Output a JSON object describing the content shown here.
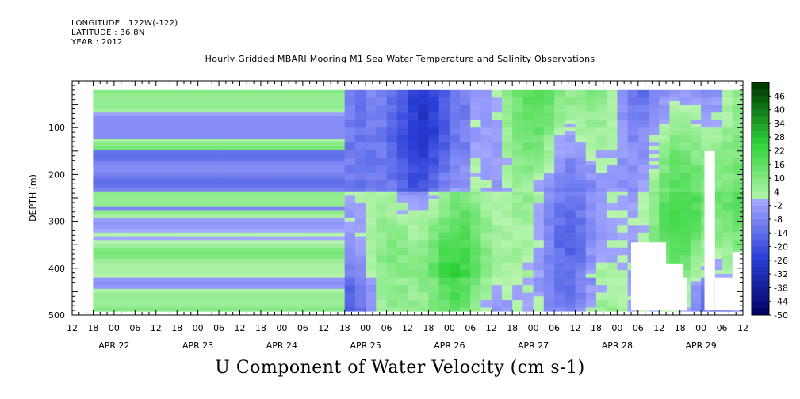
{
  "header": {
    "longitude": "LONGITUDE : 122W(-122)",
    "latitude": "LATITUDE : 36.8N",
    "year": "YEAR : 2012"
  },
  "chart_data": {
    "type": "heatmap",
    "title": "Hourly Gridded MBARI Mooring M1 Sea Water Temperature and Salinity Observations",
    "bottom_title": "U Component of Water Velocity (cm s-1)",
    "ylabel": "DEPTH (m)",
    "ylim": [
      500,
      0
    ],
    "y_ticks": [
      100,
      200,
      300,
      400,
      500
    ],
    "x_hour_labels": [
      "12",
      "18",
      "00",
      "06",
      "12",
      "18",
      "00",
      "06",
      "12",
      "18",
      "00",
      "06",
      "12",
      "18",
      "00",
      "06",
      "12",
      "18",
      "00",
      "06",
      "12",
      "18",
      "00",
      "06",
      "12",
      "18",
      "00",
      "06",
      "12",
      "18",
      "00",
      "06",
      "12"
    ],
    "x_hours_start": "2012-04-21 12:00",
    "x_hours_end": "2012-04-29 12:00",
    "x_day_labels": [
      "APR 22",
      "APR 23",
      "APR 24",
      "APR 25",
      "APR 26",
      "APR 27",
      "APR 28",
      "APR 29"
    ],
    "colorbar": {
      "labels": [
        "46",
        "40",
        "34",
        "28",
        "22",
        "16",
        "10",
        "4",
        "-2",
        "-8",
        "-14",
        "-20",
        "-26",
        "-32",
        "-38",
        "-44",
        "-50"
      ],
      "min": -50,
      "max": 52,
      "step": 3
    },
    "data_extent": {
      "time_start": "2012-04-21 18:00",
      "time_end": "2012-04-29 12:00",
      "depth_min": 20,
      "depth_max": 487
    },
    "colors": {
      "neg_deep": "#000060",
      "neg_mid": "#2a3fd8",
      "neg_light": "#a4a8ff",
      "near_zero_pos": "#b8f5b0",
      "pos_mid": "#2ed43a",
      "pos_deep": "#003c00"
    }
  }
}
